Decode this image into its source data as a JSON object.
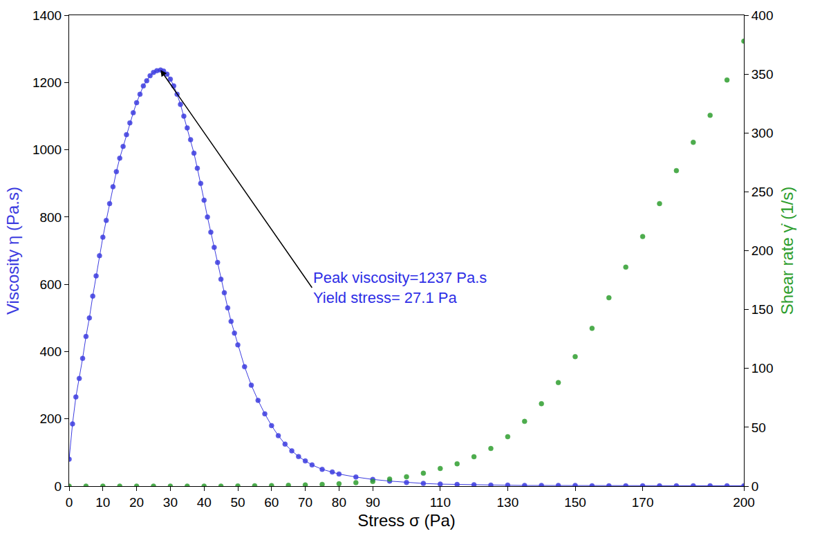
{
  "chart_data": {
    "type": "line",
    "x_label": "Stress σ (Pa)",
    "y_label": "Viscosity η (Pa.s)",
    "y2_label": "Shear rate γ̇ (1/s)",
    "xlim": [
      0,
      200
    ],
    "xticks": [
      0,
      10,
      20,
      30,
      40,
      50,
      60,
      70,
      80,
      90,
      110,
      130,
      150,
      170,
      200
    ],
    "ylim": [
      0,
      1400
    ],
    "yticks": [
      0,
      200,
      400,
      600,
      800,
      1000,
      1200,
      1400
    ],
    "y2lim": [
      0,
      400
    ],
    "y2ticks": [
      0,
      50,
      100,
      150,
      200,
      250,
      300,
      350,
      400
    ],
    "grid": false,
    "annotations": [
      {
        "text": [
          "Peak viscosity=1237 Pa.s",
          "Yield stress= 27.1 Pa"
        ],
        "x": 27.1,
        "y": 1237,
        "color": "#2e2ee6"
      }
    ],
    "series": [
      {
        "name": "Viscosity",
        "type": "line",
        "marker": "circle",
        "color": "#3c3ce0",
        "axis": "y",
        "x": [
          0,
          1,
          2,
          3,
          4,
          5,
          6,
          7,
          8,
          9,
          10,
          11,
          12,
          13,
          14,
          15,
          16,
          17,
          18,
          19,
          20,
          21,
          22,
          23,
          24,
          25,
          26,
          27.1,
          28,
          29,
          30,
          31,
          32,
          33,
          34,
          35,
          36,
          37,
          38,
          39,
          40,
          41,
          42,
          43,
          44,
          45,
          46,
          47,
          48,
          49,
          50,
          52,
          54,
          56,
          58,
          60,
          62,
          64,
          66,
          68,
          70,
          72,
          75,
          78,
          80,
          85,
          90,
          95,
          100,
          105,
          110,
          115,
          120,
          125,
          130,
          135,
          140,
          145,
          150,
          155,
          160,
          165,
          170,
          175,
          180,
          185,
          190,
          195,
          200
        ],
        "values": [
          80,
          185,
          265,
          320,
          380,
          445,
          500,
          565,
          625,
          685,
          740,
          790,
          840,
          890,
          935,
          975,
          1010,
          1045,
          1080,
          1110,
          1140,
          1165,
          1190,
          1205,
          1220,
          1230,
          1235,
          1237,
          1234,
          1225,
          1210,
          1190,
          1165,
          1135,
          1100,
          1065,
          1030,
          990,
          945,
          900,
          850,
          800,
          755,
          710,
          665,
          615,
          575,
          530,
          490,
          455,
          420,
          355,
          300,
          255,
          215,
          180,
          150,
          125,
          105,
          88,
          75,
          63,
          50,
          42,
          36,
          27,
          20,
          15,
          11,
          8,
          6,
          5,
          4,
          3,
          3,
          2,
          2,
          2,
          2,
          1,
          1,
          1,
          1,
          1,
          1,
          1,
          1,
          1,
          1
        ]
      },
      {
        "name": "Shear rate",
        "type": "scatter",
        "marker": "circle",
        "color": "#2e9e2e",
        "axis": "y2",
        "x": [
          0,
          5,
          10,
          15,
          20,
          25,
          30,
          35,
          40,
          45,
          50,
          55,
          60,
          65,
          70,
          75,
          80,
          85,
          90,
          95,
          100,
          105,
          110,
          115,
          120,
          125,
          130,
          135,
          140,
          145,
          150,
          155,
          160,
          165,
          170,
          175,
          180,
          185,
          190,
          195,
          200
        ],
        "values": [
          0,
          0,
          0,
          0,
          0,
          0,
          0,
          0,
          0,
          0,
          0.2,
          0.3,
          0.5,
          0.7,
          1,
          1.5,
          2,
          3,
          4,
          6,
          8,
          11,
          15,
          19,
          25,
          32,
          42,
          55,
          70,
          88,
          110,
          134,
          160,
          186,
          212,
          240,
          268,
          292,
          315,
          345,
          378
        ]
      }
    ]
  }
}
